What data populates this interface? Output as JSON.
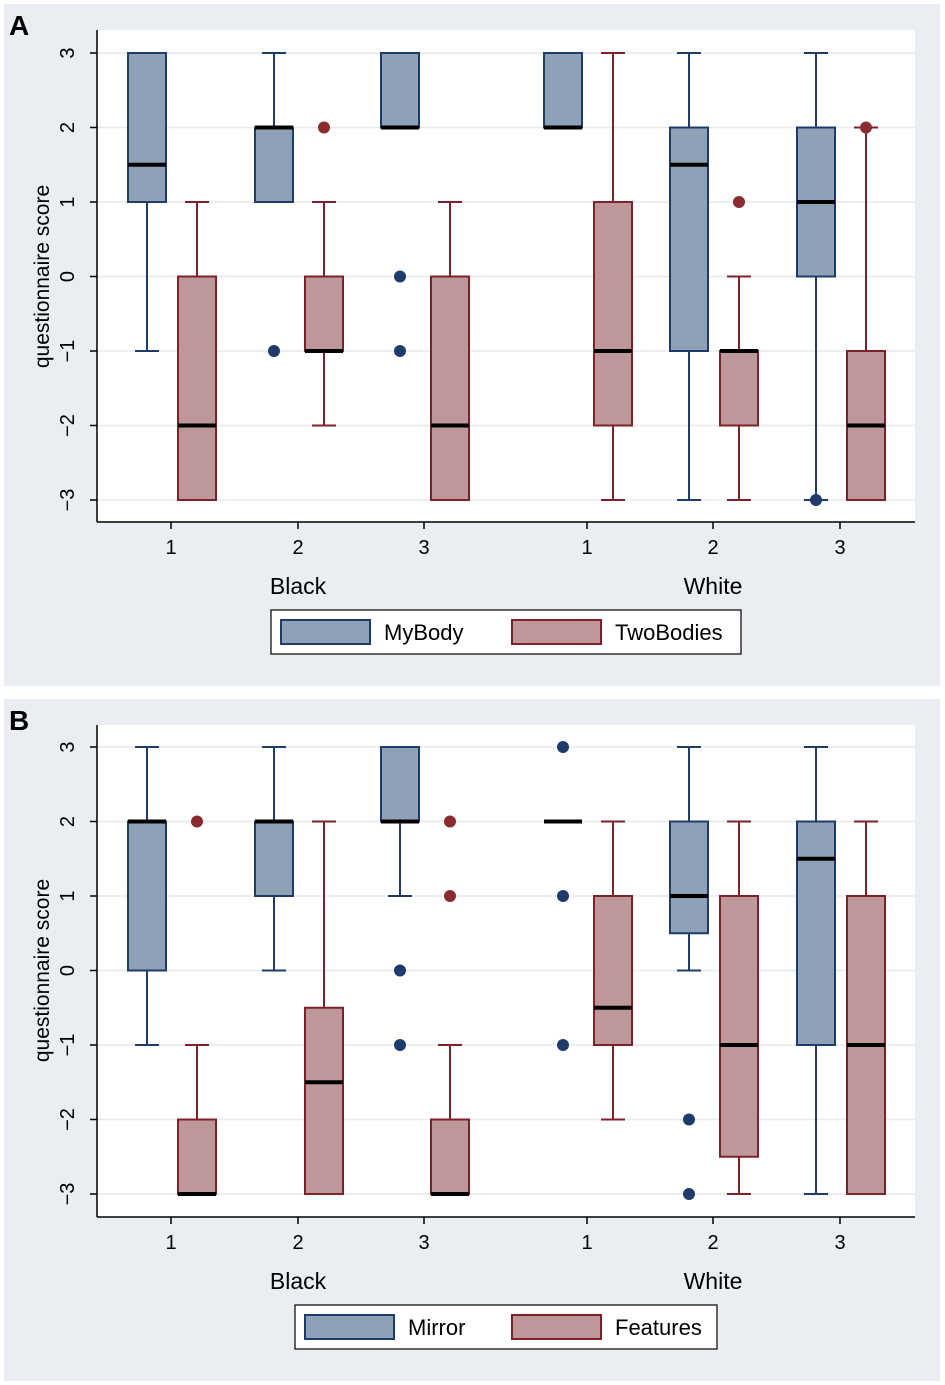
{
  "colors": {
    "series1_fill": "#8fa1b7",
    "series1_line": "#1f3b6b",
    "series2_fill": "#bd979a",
    "series2_line": "#7d2228",
    "outlier1": "#1f3b6b",
    "outlier2": "#8a2b30"
  },
  "chart_data": [
    {
      "type": "box",
      "panel_label": "A",
      "ylabel": "questionnaire score",
      "ylim": [
        -3,
        3
      ],
      "yticks": [
        -3,
        -2,
        -1,
        0,
        1,
        2,
        3
      ],
      "categories": [
        "1",
        "2",
        "3",
        "1",
        "2",
        "3"
      ],
      "groups": [
        "Black",
        "White"
      ],
      "legend": [
        "MyBody",
        "TwoBodies"
      ],
      "legend_position": "bottom",
      "grid": true,
      "series": [
        {
          "name": "MyBody",
          "stats": [
            {
              "low": -1,
              "q1": 1,
              "median": 1.5,
              "q3": 3,
              "high": 3,
              "outliers": []
            },
            {
              "low": 1,
              "q1": 1,
              "median": 2,
              "q3": 2,
              "high": 3,
              "outliers": [
                -1
              ]
            },
            {
              "low": 2,
              "q1": 2,
              "median": 2,
              "q3": 3,
              "high": 3,
              "outliers": [
                0,
                -1
              ]
            },
            {
              "low": 2,
              "q1": 2,
              "median": 2,
              "q3": 3,
              "high": 3,
              "outliers": []
            },
            {
              "low": -3,
              "q1": -1,
              "median": 1.5,
              "q3": 2,
              "high": 3,
              "outliers": []
            },
            {
              "low": -3,
              "q1": 0,
              "median": 1,
              "q3": 2,
              "high": 3,
              "outliers": [
                -3
              ]
            }
          ]
        },
        {
          "name": "TwoBodies",
          "stats": [
            {
              "low": -3,
              "q1": -3,
              "median": -2,
              "q3": 0,
              "high": 1,
              "outliers": []
            },
            {
              "low": -2,
              "q1": -1,
              "median": -1,
              "q3": 0,
              "high": 1,
              "outliers": [
                2
              ]
            },
            {
              "low": -3,
              "q1": -3,
              "median": -2,
              "q3": 0,
              "high": 1,
              "outliers": []
            },
            {
              "low": -3,
              "q1": -2,
              "median": -1,
              "q3": 1,
              "high": 3,
              "outliers": []
            },
            {
              "low": -3,
              "q1": -2,
              "median": -1,
              "q3": -1,
              "high": 0,
              "outliers": [
                1
              ]
            },
            {
              "low": -3,
              "q1": -3,
              "median": -2,
              "q3": -1,
              "high": 2,
              "outliers": [
                2
              ]
            }
          ]
        }
      ]
    },
    {
      "type": "box",
      "panel_label": "B",
      "ylabel": "questionnaire score",
      "ylim": [
        -3,
        3
      ],
      "yticks": [
        -3,
        -2,
        -1,
        0,
        1,
        2,
        3
      ],
      "categories": [
        "1",
        "2",
        "3",
        "1",
        "2",
        "3"
      ],
      "groups": [
        "Black",
        "White"
      ],
      "legend": [
        "Mirror",
        "Features"
      ],
      "legend_position": "bottom",
      "grid": true,
      "series": [
        {
          "name": "Mirror",
          "stats": [
            {
              "low": -1,
              "q1": 0,
              "median": 2,
              "q3": 2,
              "high": 3,
              "outliers": []
            },
            {
              "low": 0,
              "q1": 1,
              "median": 2,
              "q3": 2,
              "high": 3,
              "outliers": []
            },
            {
              "low": 1,
              "q1": 2,
              "median": 2,
              "q3": 3,
              "high": 3,
              "outliers": [
                0,
                -1
              ]
            },
            {
              "low": 2,
              "q1": 2,
              "median": 2,
              "q3": 2,
              "high": 2,
              "outliers": [
                3,
                1,
                -1
              ]
            },
            {
              "low": 0,
              "q1": 0.5,
              "median": 1,
              "q3": 2,
              "high": 3,
              "outliers": [
                -2,
                -3
              ]
            },
            {
              "low": -3,
              "q1": -1,
              "median": 1.5,
              "q3": 2,
              "high": 3,
              "outliers": []
            }
          ]
        },
        {
          "name": "Features",
          "stats": [
            {
              "low": -3,
              "q1": -3,
              "median": -3,
              "q3": -2,
              "high": -1,
              "outliers": [
                2
              ]
            },
            {
              "low": -3,
              "q1": -3,
              "median": -1.5,
              "q3": -0.5,
              "high": 2,
              "outliers": []
            },
            {
              "low": -3,
              "q1": -3,
              "median": -3,
              "q3": -2,
              "high": -1,
              "outliers": [
                2,
                1
              ]
            },
            {
              "low": -2,
              "q1": -1,
              "median": -0.5,
              "q3": 1,
              "high": 2,
              "outliers": []
            },
            {
              "low": -3,
              "q1": -2.5,
              "median": -1,
              "q3": 1,
              "high": 2,
              "outliers": []
            },
            {
              "low": -3,
              "q1": -3,
              "median": -1,
              "q3": 1,
              "high": 2,
              "outliers": []
            }
          ]
        }
      ]
    }
  ]
}
